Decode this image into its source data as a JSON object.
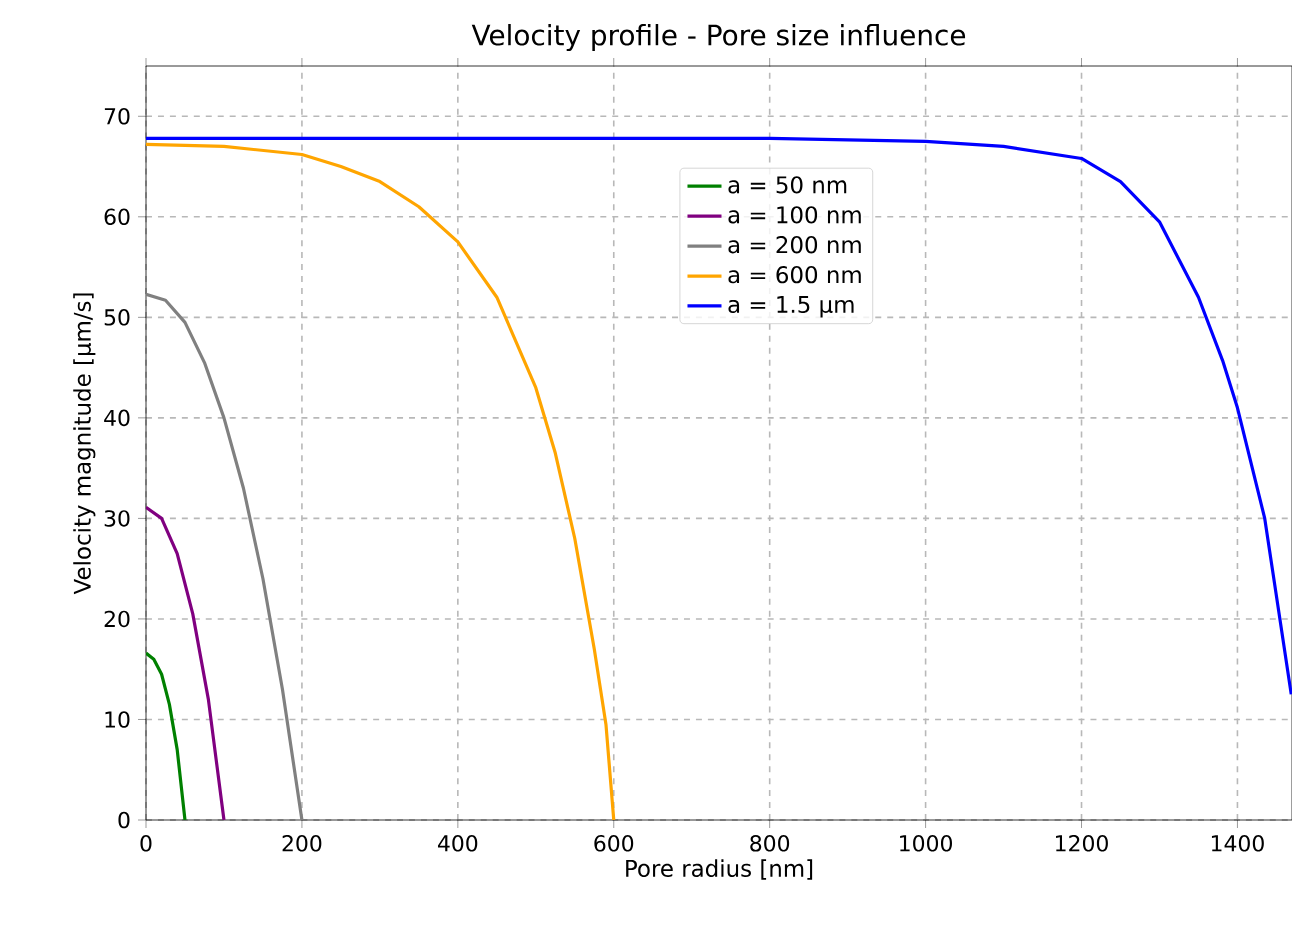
{
  "chart_data": {
    "type": "line",
    "title": "Velocity profile - Pore size influence",
    "xlabel": "Pore radius [nm]",
    "ylabel": "Velocity magnitude [µm/s]",
    "xlim": [
      0,
      1470
    ],
    "ylim": [
      0,
      75
    ],
    "xticks": [
      0,
      200,
      400,
      600,
      800,
      1000,
      1200,
      1400
    ],
    "yticks": [
      0,
      10,
      20,
      30,
      40,
      50,
      60,
      70
    ],
    "grid": true,
    "legend": "top",
    "marker": "none",
    "line_style": "solid",
    "series": [
      {
        "name": "a = 50 nm",
        "color": "#008000",
        "x": [
          0,
          10,
          20,
          30,
          40,
          50
        ],
        "values": [
          16.6,
          16.0,
          14.5,
          11.5,
          7.0,
          0
        ]
      },
      {
        "name": "a = 100 nm",
        "color": "#800080",
        "x": [
          0,
          20,
          40,
          60,
          80,
          100
        ],
        "values": [
          31.1,
          30.0,
          26.5,
          20.5,
          12.0,
          0
        ]
      },
      {
        "name": "a = 200 nm",
        "color": "#808080",
        "x": [
          0,
          25,
          50,
          75,
          100,
          125,
          150,
          175,
          200
        ],
        "values": [
          52.3,
          51.7,
          49.5,
          45.5,
          40.0,
          33.0,
          24.0,
          13.0,
          0
        ]
      },
      {
        "name": "a = 600 nm",
        "color": "#ffa500",
        "x": [
          0,
          100,
          200,
          250,
          300,
          350,
          400,
          450,
          500,
          525,
          550,
          575,
          590,
          600
        ],
        "values": [
          67.2,
          67.0,
          66.2,
          65.0,
          63.5,
          61.0,
          57.5,
          52.0,
          43.0,
          36.5,
          28.0,
          17.0,
          9.5,
          0
        ]
      },
      {
        "name": "a = 1.5 µm",
        "color": "#0000ff",
        "x": [
          0,
          600,
          800,
          1000,
          1100,
          1200,
          1250,
          1300,
          1350,
          1381,
          1400,
          1435,
          1469
        ],
        "values": [
          67.8,
          67.8,
          67.8,
          67.5,
          67.0,
          65.8,
          63.5,
          59.5,
          52.0,
          45.7,
          41.0,
          30.0,
          12.5
        ]
      }
    ]
  }
}
